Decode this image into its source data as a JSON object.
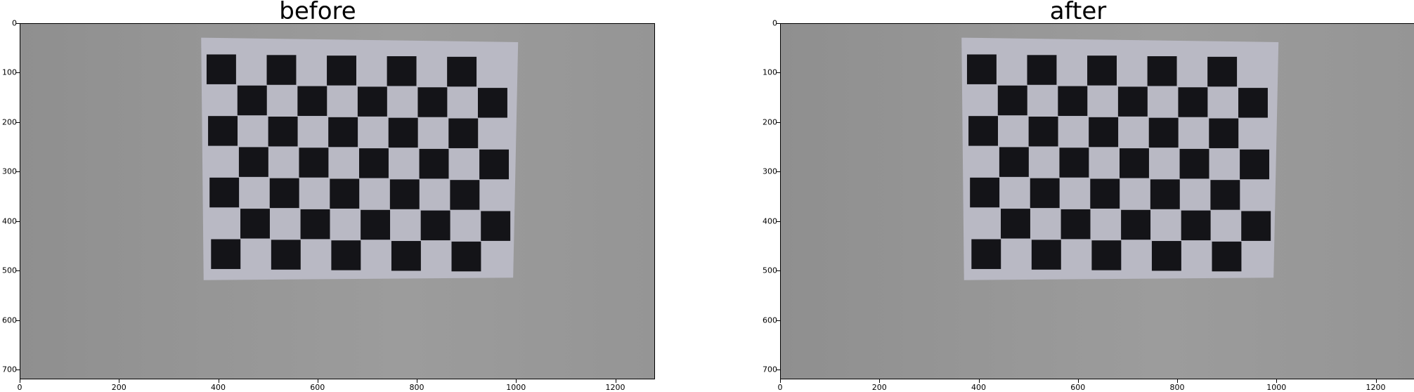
{
  "figure": {
    "panels": [
      {
        "title": "before",
        "key": "before"
      },
      {
        "title": "after",
        "key": "after"
      }
    ],
    "x_ticks": [
      "0",
      "200",
      "400",
      "600",
      "800",
      "1000",
      "1200"
    ],
    "y_ticks": [
      "0",
      "100",
      "200",
      "300",
      "400",
      "500",
      "600",
      "700"
    ],
    "image_width": 1280,
    "image_height": 720,
    "checkerboard": {
      "rows": 7,
      "cols": 10
    }
  },
  "colors": {
    "wall": "#959595",
    "paper": "#b9b9c4",
    "square": "#141418",
    "axis": "#000000"
  }
}
